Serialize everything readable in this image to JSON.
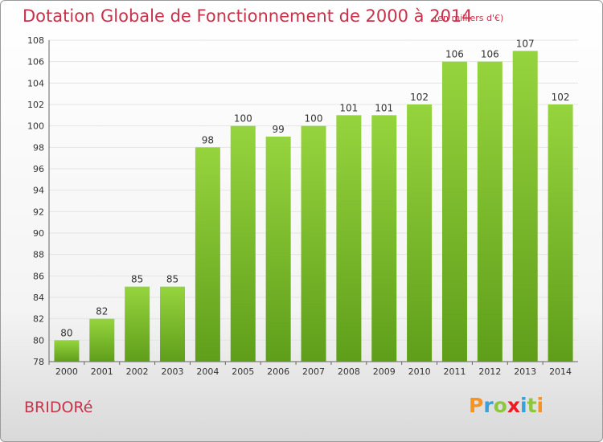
{
  "header": {
    "title": "Dotation Globale de Fonctionnement de 2000 à 2014",
    "unit": "(en milliers d'€)"
  },
  "footer": {
    "commune": "BRIDORé",
    "logo_letters": [
      "P",
      "r",
      "o",
      "x",
      "i",
      "t",
      "i"
    ],
    "logo_colors": [
      "#f7941d",
      "#3aa0d8",
      "#8dc63f",
      "#ed1c24",
      "#3aa0d8",
      "#8dc63f",
      "#f7941d"
    ]
  },
  "chart_data": {
    "type": "bar",
    "title": "Dotation Globale de Fonctionnement de 2000 à 2014",
    "categories": [
      "2000",
      "2001",
      "2002",
      "2003",
      "2004",
      "2005",
      "2006",
      "2007",
      "2008",
      "2009",
      "2010",
      "2011",
      "2012",
      "2013",
      "2014"
    ],
    "values": [
      80,
      82,
      85,
      85,
      98,
      100,
      99,
      100,
      101,
      101,
      102,
      106,
      106,
      107,
      102
    ],
    "ylim": [
      78,
      108
    ],
    "yticks": [
      78,
      80,
      82,
      84,
      86,
      88,
      90,
      92,
      94,
      96,
      98,
      100,
      102,
      104,
      106,
      108
    ],
    "grid": true,
    "bar_color": "#7cc12d"
  }
}
